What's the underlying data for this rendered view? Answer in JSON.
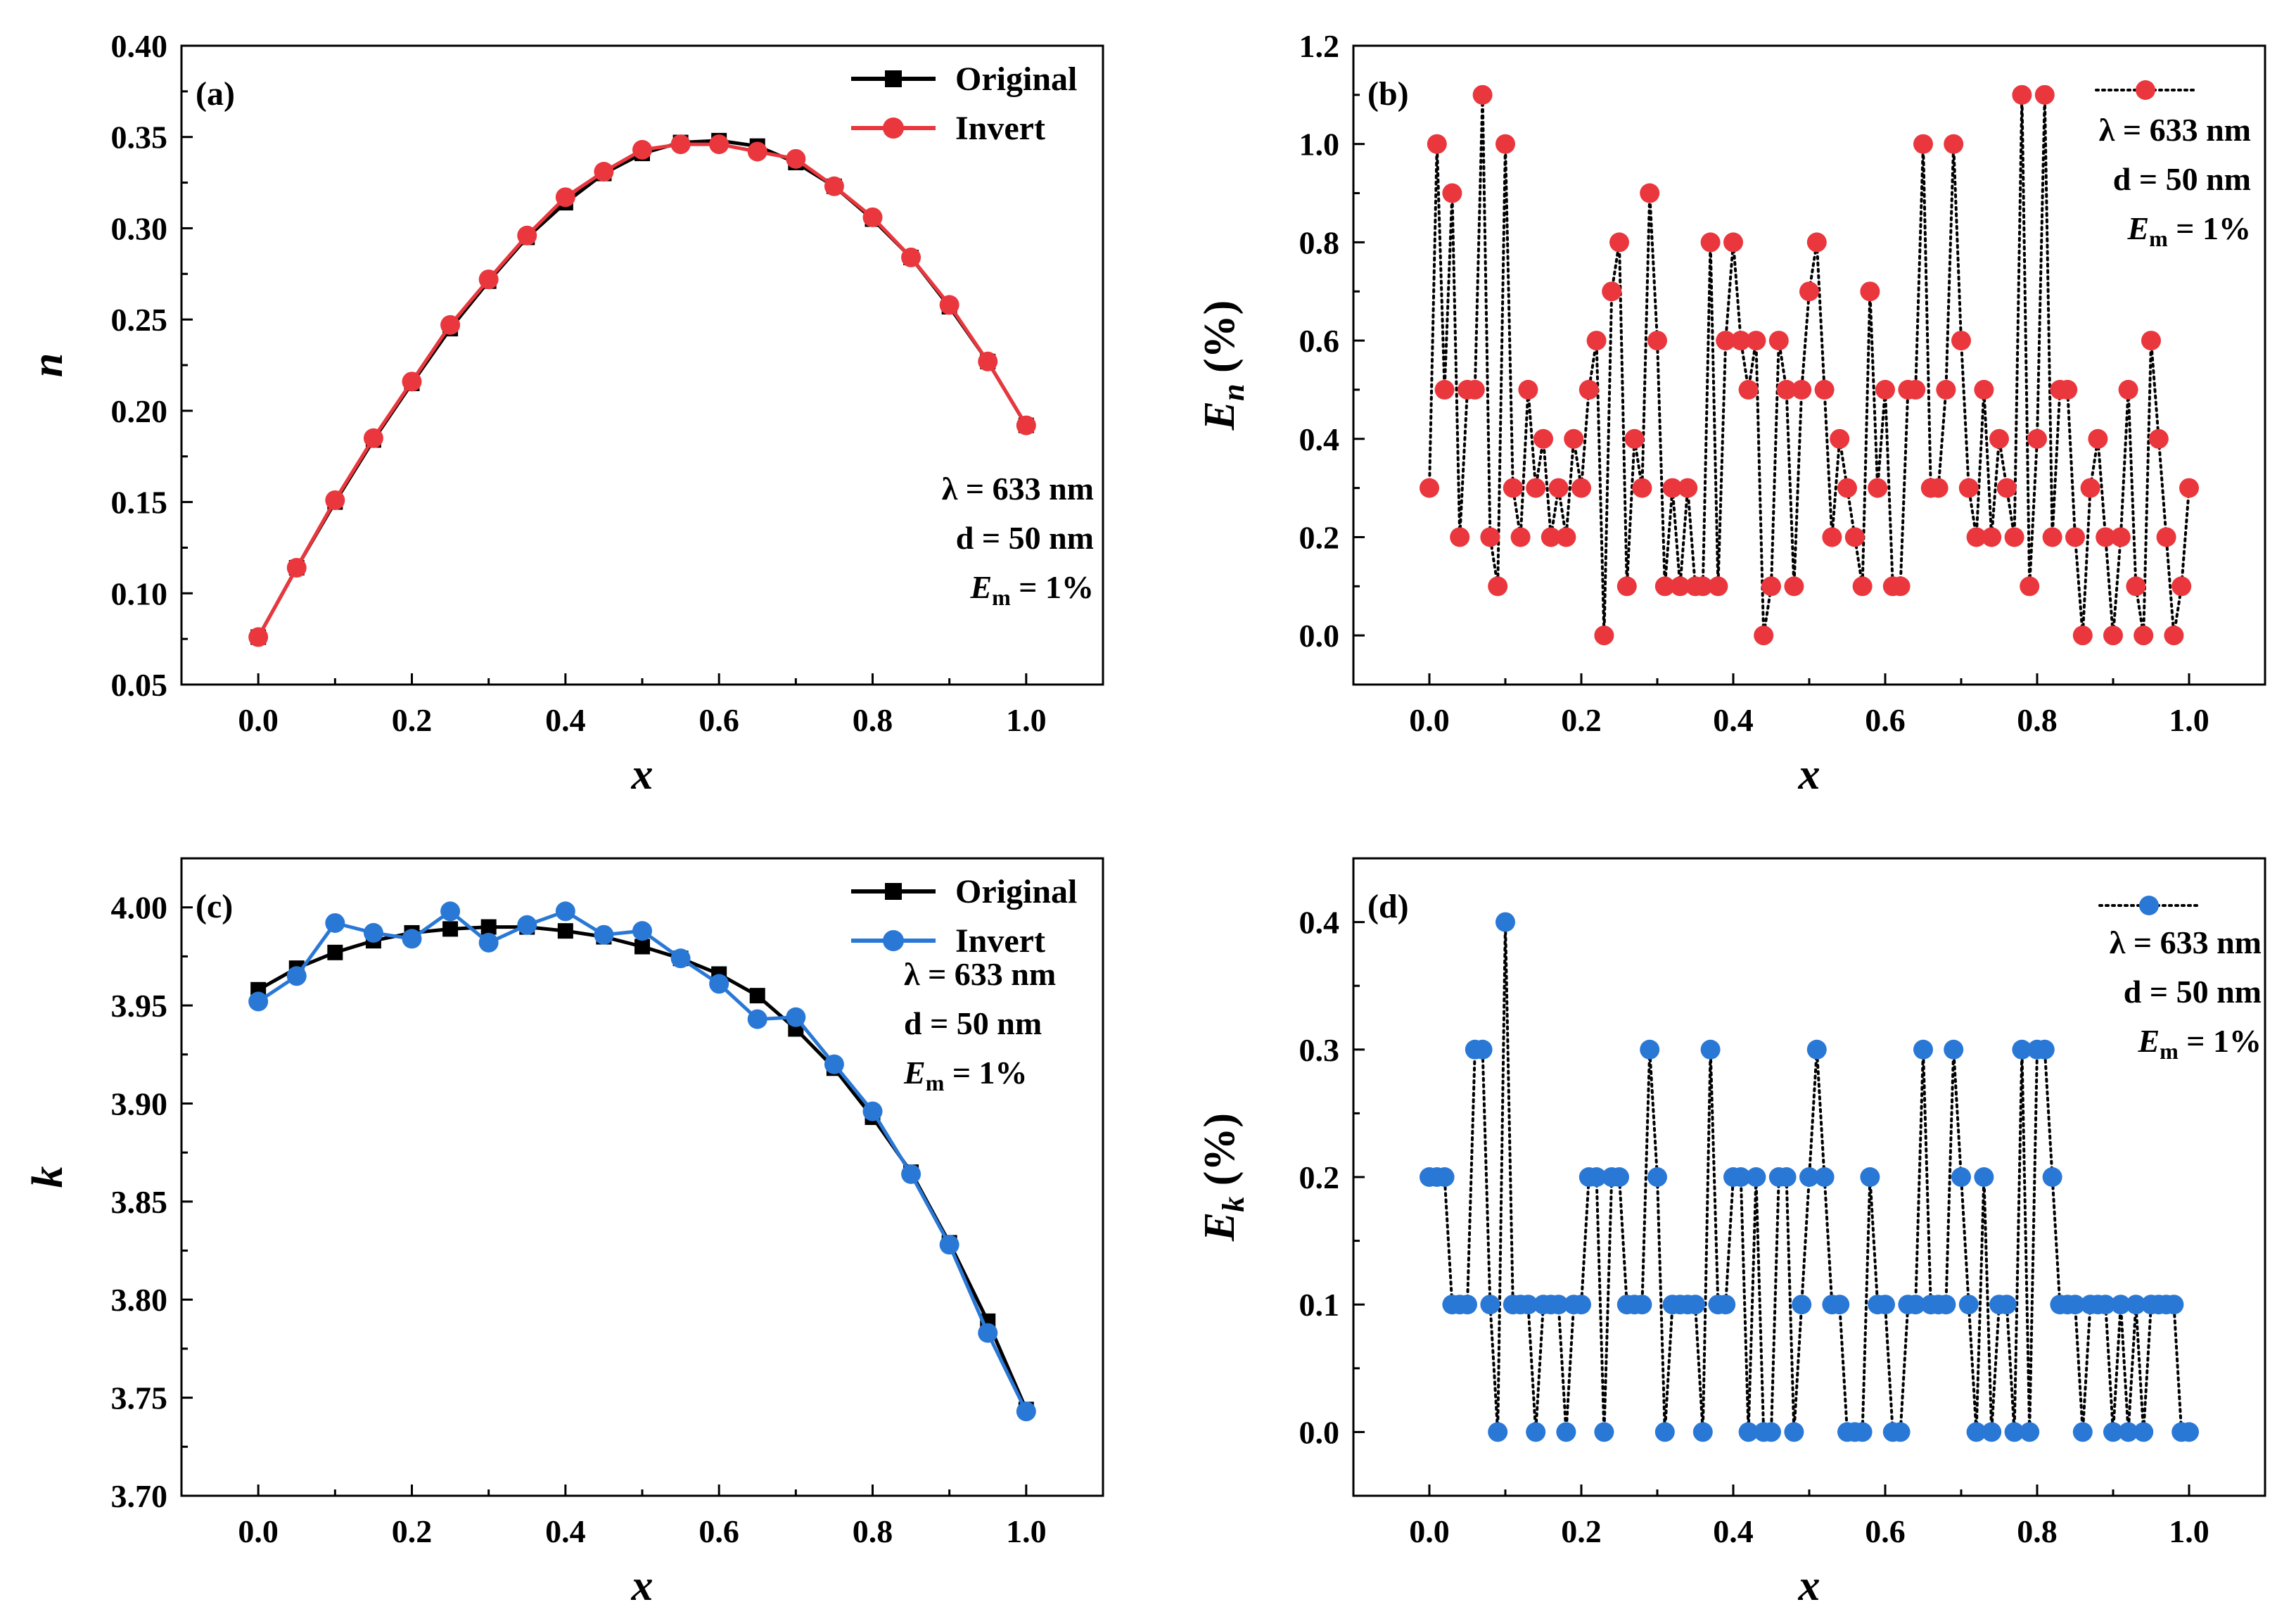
{
  "colors": {
    "original": "#000000",
    "red": "#e9373d",
    "blue": "#2a78d6",
    "dotted": "#000000"
  },
  "chart_data": [
    {
      "id": "a",
      "type": "line",
      "panel_label": "(a)",
      "xlabel": "x",
      "ylabel": "n",
      "xlim": [
        -0.1,
        1.1
      ],
      "ylim": [
        0.05,
        0.4
      ],
      "xticks": [
        0.0,
        0.2,
        0.4,
        0.6,
        0.8,
        1.0
      ],
      "xtick_labels": [
        "0.0",
        "0.2",
        "0.4",
        "0.6",
        "0.8",
        "1.0"
      ],
      "yticks": [
        0.05,
        0.1,
        0.15,
        0.2,
        0.25,
        0.3,
        0.35,
        0.4
      ],
      "ytick_labels": [
        "0.05",
        "0.10",
        "0.15",
        "0.20",
        "0.25",
        "0.30",
        "0.35",
        "0.40"
      ],
      "legend": [
        "Original",
        "Invert"
      ],
      "annotation": {
        "lambda": "λ = 633 nm",
        "d": "d = 50 nm",
        "em": "E",
        "em_sub": "m",
        "em_val": " = 1%"
      },
      "series": [
        {
          "name": "Original",
          "marker": "square",
          "color": "#000000",
          "x": [
            0.0,
            0.05,
            0.1,
            0.15,
            0.2,
            0.25,
            0.3,
            0.35,
            0.4,
            0.45,
            0.5,
            0.55,
            0.6,
            0.65,
            0.7,
            0.75,
            0.8,
            0.85,
            0.9,
            0.95,
            1.0
          ],
          "y": [
            0.076,
            0.114,
            0.15,
            0.184,
            0.215,
            0.245,
            0.271,
            0.295,
            0.314,
            0.33,
            0.341,
            0.347,
            0.348,
            0.345,
            0.336,
            0.323,
            0.305,
            0.284,
            0.257,
            0.227,
            0.192
          ]
        },
        {
          "name": "Invert",
          "marker": "circle",
          "color": "#e9373d",
          "x": [
            0.0,
            0.05,
            0.1,
            0.15,
            0.2,
            0.25,
            0.3,
            0.35,
            0.4,
            0.45,
            0.5,
            0.55,
            0.6,
            0.65,
            0.7,
            0.75,
            0.8,
            0.85,
            0.9,
            0.95,
            1.0
          ],
          "y": [
            0.076,
            0.114,
            0.151,
            0.185,
            0.216,
            0.247,
            0.272,
            0.296,
            0.317,
            0.331,
            0.343,
            0.346,
            0.346,
            0.342,
            0.338,
            0.323,
            0.306,
            0.284,
            0.258,
            0.227,
            0.192
          ]
        }
      ]
    },
    {
      "id": "b",
      "type": "scatter",
      "panel_label": "(b)",
      "xlabel": "x",
      "ylabel": "E",
      "ylabel_sub": "n",
      "ylabel_unit": " (%)",
      "xlim": [
        -0.1,
        1.1
      ],
      "ylim": [
        -0.1,
        1.2
      ],
      "xticks": [
        0.0,
        0.2,
        0.4,
        0.6,
        0.8,
        1.0
      ],
      "xtick_labels": [
        "0.0",
        "0.2",
        "0.4",
        "0.6",
        "0.8",
        "1.0"
      ],
      "yticks": [
        0.0,
        0.2,
        0.4,
        0.6,
        0.8,
        1.0,
        1.2
      ],
      "ytick_labels": [
        "0.0",
        "0.2",
        "0.4",
        "0.6",
        "0.8",
        "1.0",
        "1.2"
      ],
      "annotation": {
        "lambda": "λ = 633 nm",
        "d": "d = 50 nm",
        "em": "E",
        "em_sub": "m",
        "em_val": " = 1%"
      },
      "series": [
        {
          "name": "E_n",
          "marker": "circle",
          "color": "#e9373d",
          "x": [
            0.0,
            0.01,
            0.02,
            0.03,
            0.04,
            0.05,
            0.06,
            0.07,
            0.08,
            0.09,
            0.1,
            0.11,
            0.12,
            0.13,
            0.14,
            0.15,
            0.16,
            0.17,
            0.18,
            0.19,
            0.2,
            0.21,
            0.22,
            0.23,
            0.24,
            0.25,
            0.26,
            0.27,
            0.28,
            0.29,
            0.3,
            0.31,
            0.32,
            0.33,
            0.34,
            0.35,
            0.36,
            0.37,
            0.38,
            0.39,
            0.4,
            0.41,
            0.42,
            0.43,
            0.44,
            0.45,
            0.46,
            0.47,
            0.48,
            0.49,
            0.5,
            0.51,
            0.52,
            0.53,
            0.54,
            0.55,
            0.56,
            0.57,
            0.58,
            0.59,
            0.6,
            0.61,
            0.62,
            0.63,
            0.64,
            0.65,
            0.66,
            0.67,
            0.68,
            0.69,
            0.7,
            0.71,
            0.72,
            0.73,
            0.74,
            0.75,
            0.76,
            0.77,
            0.78,
            0.79,
            0.8,
            0.81,
            0.82,
            0.83,
            0.84,
            0.85,
            0.86,
            0.87,
            0.88,
            0.89,
            0.9,
            0.91,
            0.92,
            0.93,
            0.94,
            0.95,
            0.96,
            0.97,
            0.98,
            0.99,
            1.0
          ],
          "y": [
            0.3,
            1.0,
            0.5,
            0.9,
            0.2,
            0.5,
            0.5,
            1.1,
            0.2,
            0.1,
            1.0,
            0.3,
            0.2,
            0.5,
            0.3,
            0.4,
            0.2,
            0.3,
            0.2,
            0.4,
            0.3,
            0.5,
            0.6,
            0.0,
            0.7,
            0.8,
            0.1,
            0.4,
            0.3,
            0.9,
            0.6,
            0.1,
            0.3,
            0.1,
            0.3,
            0.1,
            0.1,
            0.8,
            0.1,
            0.6,
            0.8,
            0.6,
            0.5,
            0.6,
            0.0,
            0.1,
            0.6,
            0.5,
            0.1,
            0.5,
            0.7,
            0.8,
            0.5,
            0.2,
            0.4,
            0.3,
            0.2,
            0.1,
            0.7,
            0.3,
            0.5,
            0.1,
            0.1,
            0.5,
            0.5,
            1.0,
            0.3,
            0.3,
            0.5,
            1.0,
            0.6,
            0.3,
            0.2,
            0.5,
            0.2,
            0.4,
            0.3,
            0.2,
            1.1,
            0.1,
            0.4,
            1.1,
            0.2,
            0.5,
            0.5,
            0.2,
            0.0,
            0.3,
            0.4,
            0.2,
            0.0,
            0.2,
            0.5,
            0.1,
            0.0,
            0.6,
            0.4,
            0.2,
            0.0,
            0.1,
            0.3
          ]
        }
      ]
    },
    {
      "id": "c",
      "type": "line",
      "panel_label": "(c)",
      "xlabel": "x",
      "ylabel": "k",
      "xlim": [
        -0.1,
        1.1
      ],
      "ylim": [
        3.7,
        4.025
      ],
      "xticks": [
        0.0,
        0.2,
        0.4,
        0.6,
        0.8,
        1.0
      ],
      "xtick_labels": [
        "0.0",
        "0.2",
        "0.4",
        "0.6",
        "0.8",
        "1.0"
      ],
      "yticks": [
        3.7,
        3.75,
        3.8,
        3.85,
        3.9,
        3.95,
        4.0
      ],
      "ytick_labels": [
        "3.70",
        "3.75",
        "3.80",
        "3.85",
        "3.90",
        "3.95",
        "4.00"
      ],
      "legend": [
        "Original",
        "Invert"
      ],
      "annotation": {
        "lambda": "λ = 633 nm",
        "d": "d = 50 nm",
        "em": "E",
        "em_sub": "m",
        "em_val": " = 1%"
      },
      "series": [
        {
          "name": "Original",
          "marker": "square",
          "color": "#000000",
          "x": [
            0.0,
            0.05,
            0.1,
            0.15,
            0.2,
            0.25,
            0.3,
            0.35,
            0.4,
            0.45,
            0.5,
            0.55,
            0.6,
            0.65,
            0.7,
            0.75,
            0.8,
            0.85,
            0.9,
            0.95,
            1.0
          ],
          "y": [
            3.958,
            3.969,
            3.977,
            3.983,
            3.987,
            3.989,
            3.99,
            3.99,
            3.988,
            3.985,
            3.98,
            3.974,
            3.966,
            3.955,
            3.938,
            3.918,
            3.893,
            3.865,
            3.829,
            3.789,
            3.744
          ]
        },
        {
          "name": "Invert",
          "marker": "circle",
          "color": "#2a78d6",
          "x": [
            0.0,
            0.05,
            0.1,
            0.15,
            0.2,
            0.25,
            0.3,
            0.35,
            0.4,
            0.45,
            0.5,
            0.55,
            0.6,
            0.65,
            0.7,
            0.75,
            0.8,
            0.85,
            0.9,
            0.95,
            1.0
          ],
          "y": [
            3.952,
            3.965,
            3.992,
            3.987,
            3.984,
            3.998,
            3.982,
            3.991,
            3.998,
            3.986,
            3.988,
            3.974,
            3.961,
            3.943,
            3.944,
            3.92,
            3.896,
            3.864,
            3.828,
            3.783,
            3.743
          ]
        }
      ]
    },
    {
      "id": "d",
      "type": "scatter",
      "panel_label": "(d)",
      "xlabel": "x",
      "ylabel": "E",
      "ylabel_sub": "k",
      "ylabel_unit": " (%)",
      "xlim": [
        -0.1,
        1.1
      ],
      "ylim": [
        -0.05,
        0.45
      ],
      "xticks": [
        0.0,
        0.2,
        0.4,
        0.6,
        0.8,
        1.0
      ],
      "xtick_labels": [
        "0.0",
        "0.2",
        "0.4",
        "0.6",
        "0.8",
        "1.0"
      ],
      "yticks": [
        0.0,
        0.1,
        0.2,
        0.3,
        0.4
      ],
      "ytick_labels": [
        "0.0",
        "0.1",
        "0.2",
        "0.3",
        "0.4"
      ],
      "annotation": {
        "lambda": "λ = 633 nm",
        "d": "d = 50 nm",
        "em": "E",
        "em_sub": "m",
        "em_val": " = 1%"
      },
      "series": [
        {
          "name": "E_k",
          "marker": "circle",
          "color": "#2a78d6",
          "x": [
            0.0,
            0.01,
            0.02,
            0.03,
            0.04,
            0.05,
            0.06,
            0.07,
            0.08,
            0.09,
            0.1,
            0.11,
            0.12,
            0.13,
            0.14,
            0.15,
            0.16,
            0.17,
            0.18,
            0.19,
            0.2,
            0.21,
            0.22,
            0.23,
            0.24,
            0.25,
            0.26,
            0.27,
            0.28,
            0.29,
            0.3,
            0.31,
            0.32,
            0.33,
            0.34,
            0.35,
            0.36,
            0.37,
            0.38,
            0.39,
            0.4,
            0.41,
            0.42,
            0.43,
            0.44,
            0.45,
            0.46,
            0.47,
            0.48,
            0.49,
            0.5,
            0.51,
            0.52,
            0.53,
            0.54,
            0.55,
            0.56,
            0.57,
            0.58,
            0.59,
            0.6,
            0.61,
            0.62,
            0.63,
            0.64,
            0.65,
            0.66,
            0.67,
            0.68,
            0.69,
            0.7,
            0.71,
            0.72,
            0.73,
            0.74,
            0.75,
            0.76,
            0.77,
            0.78,
            0.79,
            0.8,
            0.81,
            0.82,
            0.83,
            0.84,
            0.85,
            0.86,
            0.87,
            0.88,
            0.89,
            0.9,
            0.91,
            0.92,
            0.93,
            0.94,
            0.95,
            0.96,
            0.97,
            0.98,
            0.99,
            1.0
          ],
          "y": [
            0.2,
            0.2,
            0.2,
            0.1,
            0.1,
            0.1,
            0.3,
            0.3,
            0.1,
            0.0,
            0.4,
            0.1,
            0.1,
            0.1,
            0.0,
            0.1,
            0.1,
            0.1,
            0.0,
            0.1,
            0.1,
            0.2,
            0.2,
            0.0,
            0.2,
            0.2,
            0.1,
            0.1,
            0.1,
            0.3,
            0.2,
            0.0,
            0.1,
            0.1,
            0.1,
            0.1,
            0.0,
            0.3,
            0.1,
            0.1,
            0.2,
            0.2,
            0.0,
            0.2,
            0.0,
            0.0,
            0.2,
            0.2,
            0.0,
            0.1,
            0.2,
            0.3,
            0.2,
            0.1,
            0.1,
            0.0,
            0.0,
            0.0,
            0.2,
            0.1,
            0.1,
            0.0,
            0.0,
            0.1,
            0.1,
            0.3,
            0.1,
            0.1,
            0.1,
            0.3,
            0.2,
            0.1,
            0.0,
            0.2,
            0.0,
            0.1,
            0.1,
            0.0,
            0.3,
            0.0,
            0.3,
            0.3,
            0.2,
            0.1,
            0.1,
            0.1,
            0.0,
            0.1,
            0.1,
            0.1,
            0.0,
            0.1,
            0.0,
            0.1,
            0.0,
            0.1,
            0.1,
            0.1,
            0.1,
            0.0,
            0.0
          ]
        }
      ]
    }
  ]
}
